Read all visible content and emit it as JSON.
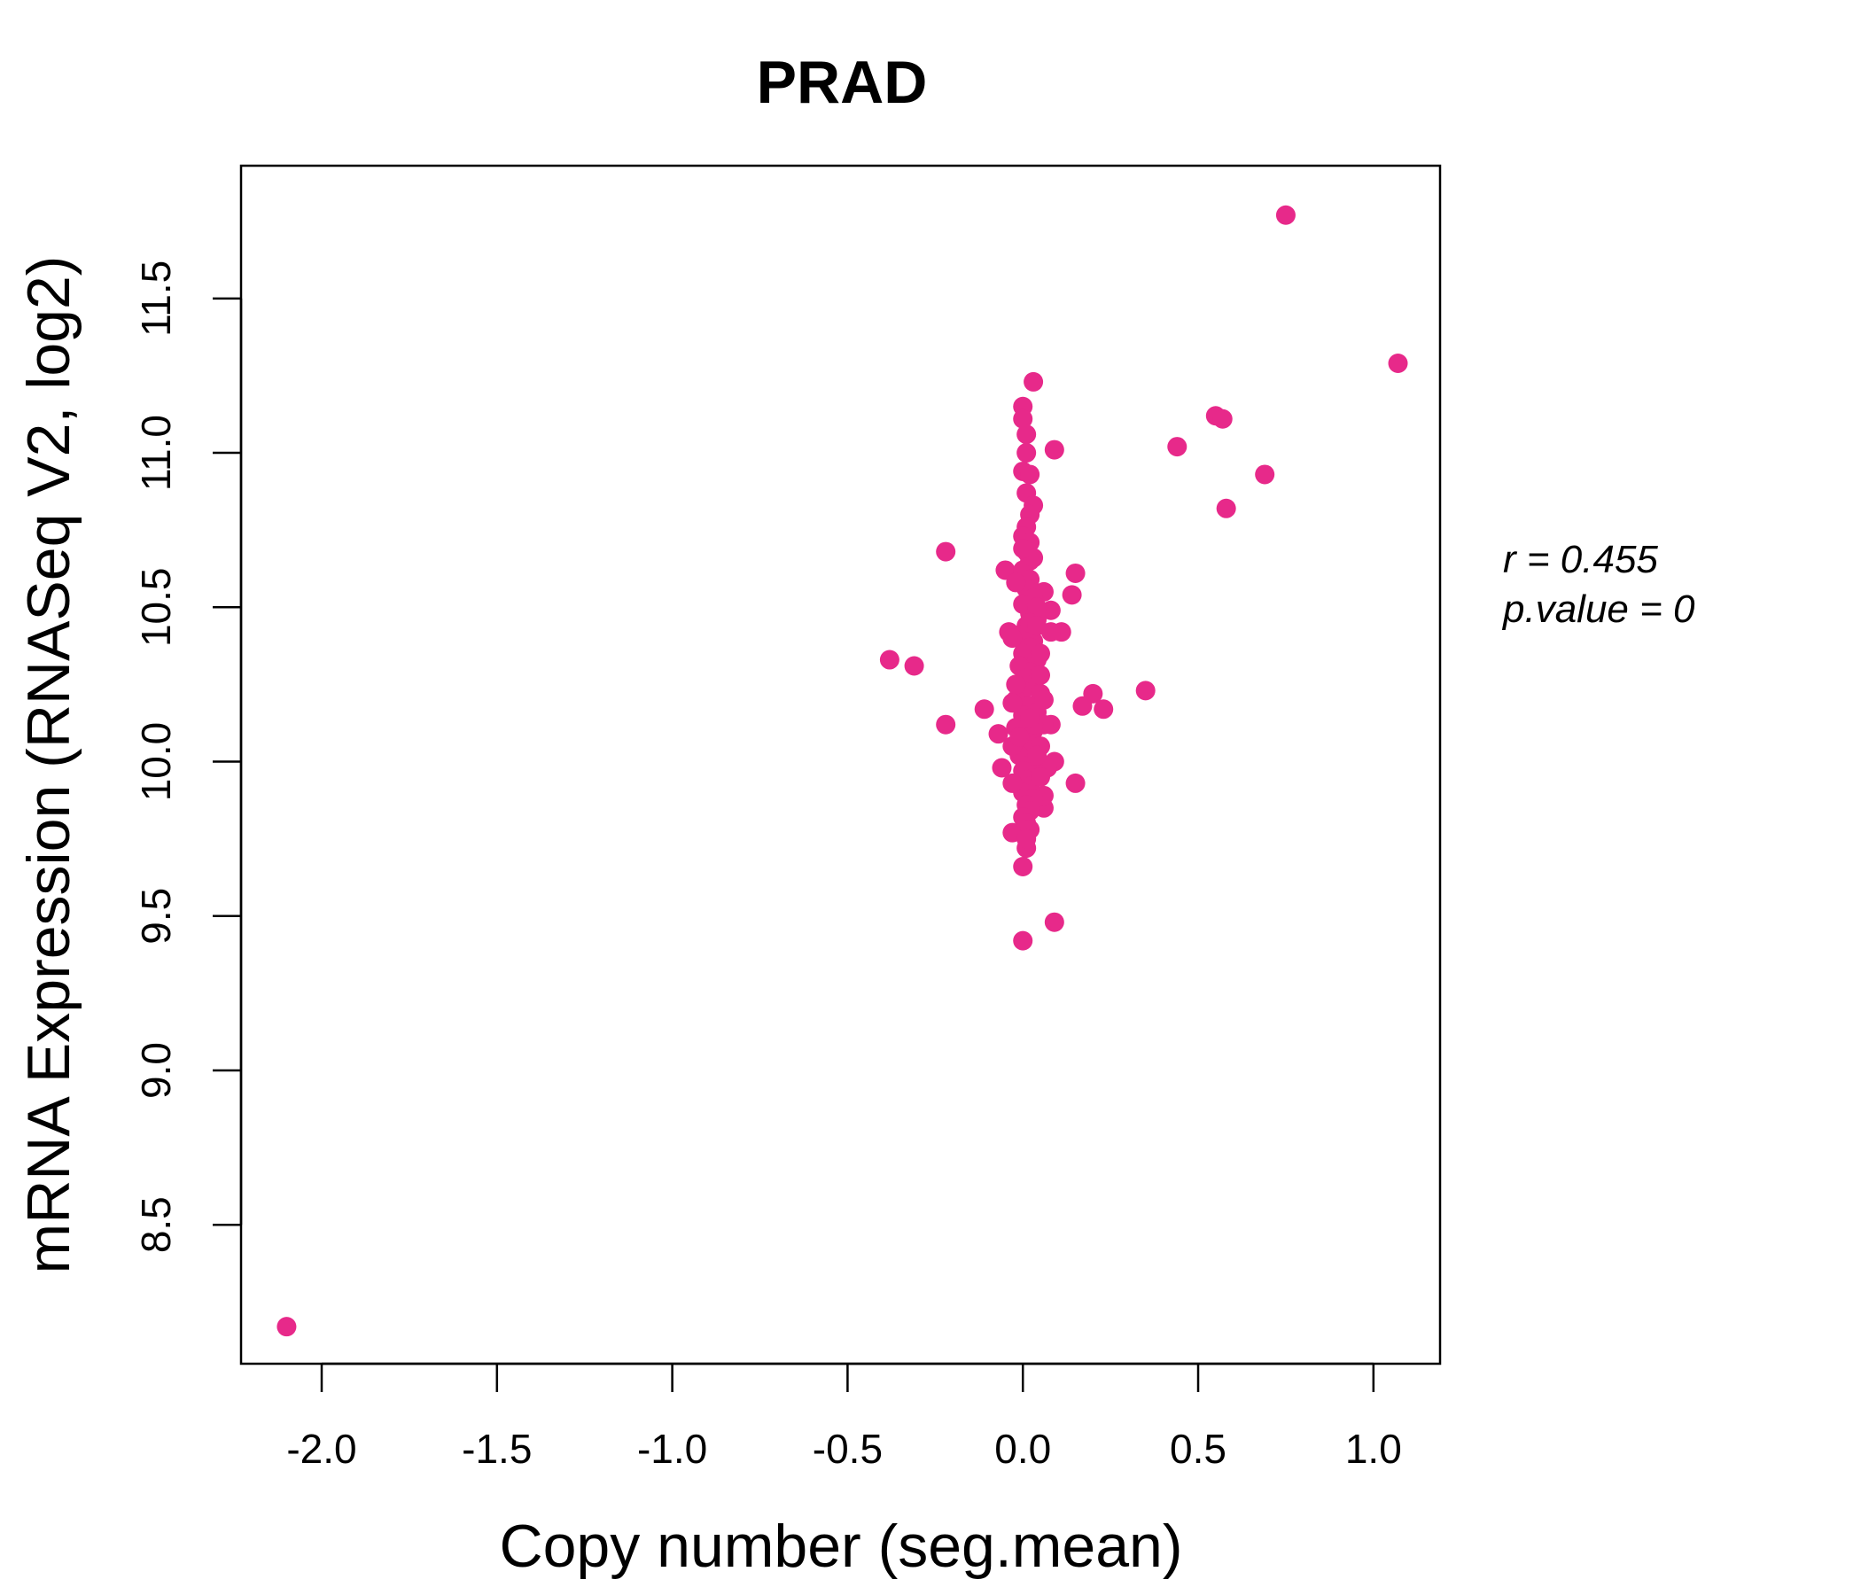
{
  "chart_data": {
    "type": "scatter",
    "title": "PRAD",
    "xlabel": "Copy number (seg.mean)",
    "ylabel": "mRNA Expression (RNASeq V2, log2)",
    "xlim": [
      -2.23,
      1.19
    ],
    "ylim": [
      8.05,
      11.93
    ],
    "x_ticks": [
      -2.0,
      -1.5,
      -1.0,
      -0.5,
      0.0,
      0.5,
      1.0
    ],
    "x_tick_labels": [
      "-2.0",
      "-1.5",
      "-1.0",
      "-0.5",
      "0.0",
      "0.5",
      "1.0"
    ],
    "y_ticks": [
      8.5,
      9.0,
      9.5,
      10.0,
      10.5,
      11.0,
      11.5
    ],
    "y_tick_labels": [
      "8.5",
      "9.0",
      "9.5",
      "10.0",
      "10.5",
      "11.0",
      "11.5"
    ],
    "grid": false,
    "point_color": "#e7298a",
    "annotations": {
      "r_label": "r = 0.455",
      "p_label": "p.value = 0"
    },
    "points": [
      [
        -2.1,
        8.17
      ],
      [
        0.75,
        11.77
      ],
      [
        1.07,
        11.29
      ],
      [
        0.03,
        11.23
      ],
      [
        0.55,
        11.12
      ],
      [
        0.57,
        11.11
      ],
      [
        0.44,
        11.02
      ],
      [
        0.69,
        10.93
      ],
      [
        0.58,
        10.82
      ],
      [
        -0.22,
        10.68
      ],
      [
        -0.05,
        10.62
      ],
      [
        0.15,
        10.61
      ],
      [
        0.14,
        10.54
      ],
      [
        0.08,
        10.49
      ],
      [
        0.11,
        10.42
      ],
      [
        -0.38,
        10.33
      ],
      [
        -0.31,
        10.31
      ],
      [
        0.35,
        10.23
      ],
      [
        0.2,
        10.22
      ],
      [
        0.23,
        10.17
      ],
      [
        0.17,
        10.18
      ],
      [
        -0.11,
        10.17
      ],
      [
        -0.22,
        10.12
      ],
      [
        0.15,
        9.93
      ],
      [
        0.09,
        9.48
      ],
      [
        0.0,
        9.42
      ],
      [
        0.0,
        9.66
      ],
      [
        0.01,
        9.72
      ],
      [
        -0.03,
        9.77
      ],
      [
        0.08,
        10.12
      ],
      [
        0.09,
        10.0
      ],
      [
        0.08,
        10.42
      ],
      [
        -0.04,
        10.42
      ],
      [
        0.06,
        10.55
      ],
      [
        -0.07,
        10.09
      ],
      [
        -0.06,
        9.98
      ],
      [
        0.07,
        9.98
      ],
      [
        0.06,
        9.85
      ],
      [
        0.06,
        9.89
      ],
      [
        0.0,
        11.15
      ],
      [
        0.0,
        11.11
      ],
      [
        0.01,
        11.06
      ],
      [
        0.01,
        11.0
      ],
      [
        0.09,
        11.01
      ],
      [
        0.0,
        10.94
      ],
      [
        0.02,
        10.93
      ],
      [
        0.01,
        10.87
      ],
      [
        0.03,
        10.83
      ],
      [
        0.02,
        10.8
      ],
      [
        0.01,
        10.76
      ],
      [
        0.0,
        10.73
      ],
      [
        0.02,
        10.71
      ],
      [
        0.01,
        10.68
      ],
      [
        0.02,
        10.65
      ],
      [
        0.0,
        10.62
      ],
      [
        0.02,
        10.59
      ],
      [
        0.01,
        10.56
      ],
      [
        0.03,
        10.53
      ],
      [
        0.0,
        10.51
      ],
      [
        0.02,
        10.48
      ],
      [
        0.04,
        10.46
      ],
      [
        0.01,
        10.44
      ],
      [
        -0.01,
        10.41
      ],
      [
        0.03,
        10.39
      ],
      [
        0.02,
        10.37
      ],
      [
        0.0,
        10.35
      ],
      [
        0.04,
        10.33
      ],
      [
        -0.01,
        10.31
      ],
      [
        0.02,
        10.29
      ],
      [
        0.01,
        10.27
      ],
      [
        0.03,
        10.25
      ],
      [
        0.0,
        10.23
      ],
      [
        0.05,
        10.22
      ],
      [
        -0.02,
        10.2
      ],
      [
        0.02,
        10.18
      ],
      [
        0.04,
        10.16
      ],
      [
        0.0,
        10.15
      ],
      [
        0.01,
        10.13
      ],
      [
        0.06,
        10.12
      ],
      [
        -0.02,
        10.11
      ],
      [
        0.03,
        10.1
      ],
      [
        0.02,
        10.08
      ],
      [
        0.0,
        10.06
      ],
      [
        0.05,
        10.05
      ],
      [
        0.01,
        10.03
      ],
      [
        -0.01,
        10.02
      ],
      [
        0.03,
        10.0
      ],
      [
        0.02,
        9.99
      ],
      [
        0.0,
        9.97
      ],
      [
        0.04,
        9.96
      ],
      [
        0.01,
        9.94
      ],
      [
        0.02,
        9.92
      ],
      [
        0.0,
        9.9
      ],
      [
        0.03,
        9.88
      ],
      [
        0.01,
        9.86
      ],
      [
        0.02,
        9.84
      ],
      [
        0.0,
        9.82
      ],
      [
        0.01,
        9.8
      ],
      [
        0.02,
        9.78
      ],
      [
        0.01,
        9.75
      ],
      [
        -0.03,
        10.4
      ],
      [
        -0.02,
        10.25
      ],
      [
        -0.03,
        10.05
      ],
      [
        0.05,
        10.35
      ],
      [
        0.04,
        10.5
      ],
      [
        0.05,
        10.28
      ],
      [
        -0.02,
        10.58
      ],
      [
        0.03,
        10.66
      ],
      [
        -0.03,
        10.19
      ],
      [
        0.06,
        10.2
      ],
      [
        0.04,
        10.02
      ],
      [
        -0.03,
        9.93
      ],
      [
        0.05,
        9.95
      ],
      [
        0.03,
        10.12
      ],
      [
        0.02,
        10.45
      ],
      [
        0.0,
        10.69
      ],
      [
        0.04,
        10.44
      ],
      [
        -0.01,
        10.08
      ],
      [
        0.02,
        10.14
      ]
    ]
  }
}
